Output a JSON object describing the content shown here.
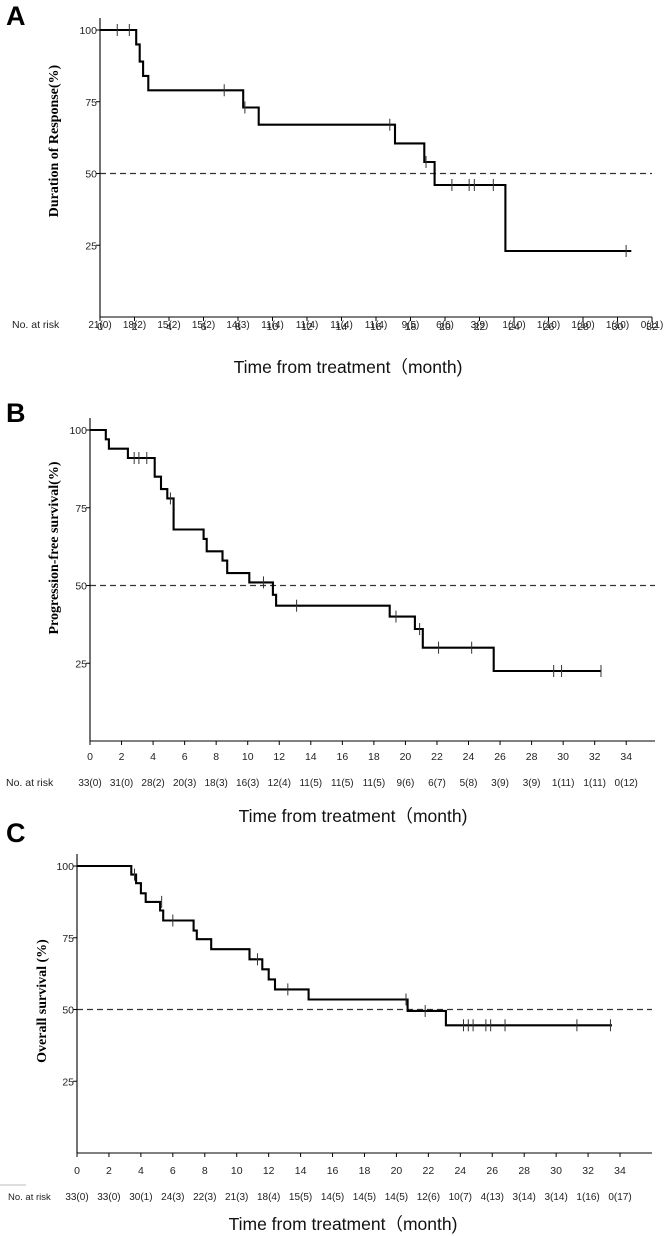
{
  "chart_data": [
    {
      "type": "line",
      "panel": "A",
      "ylabel": "Duration of Response(%)",
      "xlabel": "Time from treatment（month)",
      "xlim": [
        0,
        32
      ],
      "ylim": [
        0,
        100
      ],
      "x_ticks": [
        0,
        2,
        4,
        6,
        8,
        10,
        12,
        14,
        16,
        18,
        20,
        22,
        24,
        26,
        28,
        30,
        32
      ],
      "y_ticks": [
        25,
        50,
        75,
        100
      ],
      "reference_line": 50,
      "risk_label": "No. at risk",
      "risk_table": [
        {
          "t": 0,
          "value": "21(0)"
        },
        {
          "t": 2,
          "value": "18(2)"
        },
        {
          "t": 4,
          "value": "15(2)"
        },
        {
          "t": 6,
          "value": "15(2)"
        },
        {
          "t": 8,
          "value": "14(3)"
        },
        {
          "t": 10,
          "value": "11(4)"
        },
        {
          "t": 12,
          "value": "11(4)"
        },
        {
          "t": 14,
          "value": "11(4)"
        },
        {
          "t": 16,
          "value": "11(4)"
        },
        {
          "t": 18,
          "value": "9(5)"
        },
        {
          "t": 20,
          "value": "6(6)"
        },
        {
          "t": 22,
          "value": "3(9)"
        },
        {
          "t": 24,
          "value": "1(10)"
        },
        {
          "t": 26,
          "value": "1(10)"
        },
        {
          "t": 28,
          "value": "1(10)"
        },
        {
          "t": 30,
          "value": "1(10)"
        },
        {
          "t": 32,
          "value": "0(11)"
        }
      ],
      "curve": [
        [
          0,
          100
        ],
        [
          2.1,
          100
        ],
        [
          2.1,
          95
        ],
        [
          2.3,
          95
        ],
        [
          2.3,
          89
        ],
        [
          2.5,
          89
        ],
        [
          2.5,
          84
        ],
        [
          2.8,
          84
        ],
        [
          2.8,
          79
        ],
        [
          8.3,
          79
        ],
        [
          8.3,
          73
        ],
        [
          9.2,
          73
        ],
        [
          9.2,
          67
        ],
        [
          17.1,
          67
        ],
        [
          17.1,
          60.5
        ],
        [
          18.8,
          60.5
        ],
        [
          18.8,
          54
        ],
        [
          19.4,
          54
        ],
        [
          19.4,
          46
        ],
        [
          23.5,
          46
        ],
        [
          23.5,
          23
        ],
        [
          30.8,
          23
        ]
      ],
      "censored": [
        [
          1.0,
          100
        ],
        [
          1.7,
          100
        ],
        [
          7.2,
          79
        ],
        [
          8.4,
          73
        ],
        [
          16.8,
          67
        ],
        [
          18.9,
          54
        ],
        [
          20.4,
          46
        ],
        [
          21.4,
          46
        ],
        [
          21.7,
          46
        ],
        [
          22.8,
          46
        ],
        [
          30.5,
          23
        ]
      ]
    },
    {
      "type": "line",
      "panel": "B",
      "ylabel": "Progression-free survival(%)",
      "xlabel": "Time from treatment（month)",
      "xlim": [
        0,
        35
      ],
      "ylim": [
        0,
        100
      ],
      "x_ticks": [
        0,
        2,
        4,
        6,
        8,
        10,
        12,
        14,
        16,
        18,
        20,
        22,
        24,
        26,
        28,
        30,
        32,
        34
      ],
      "y_ticks": [
        25,
        50,
        75,
        100
      ],
      "reference_line": 50,
      "risk_label": "No. at risk",
      "risk_table": [
        {
          "t": 0,
          "value": "33(0)"
        },
        {
          "t": 2,
          "value": "31(0)"
        },
        {
          "t": 4,
          "value": "28(2)"
        },
        {
          "t": 6,
          "value": "20(3)"
        },
        {
          "t": 8,
          "value": "18(3)"
        },
        {
          "t": 10,
          "value": "16(3)"
        },
        {
          "t": 12,
          "value": "12(4)"
        },
        {
          "t": 14,
          "value": "11(5)"
        },
        {
          "t": 16,
          "value": "11(5)"
        },
        {
          "t": 18,
          "value": "11(5)"
        },
        {
          "t": 20,
          "value": "9(6)"
        },
        {
          "t": 22,
          "value": "6(7)"
        },
        {
          "t": 24,
          "value": "5(8)"
        },
        {
          "t": 26,
          "value": "3(9)"
        },
        {
          "t": 28,
          "value": "3(9)"
        },
        {
          "t": 30,
          "value": "1(11)"
        },
        {
          "t": 32,
          "value": "1(11)"
        },
        {
          "t": 34,
          "value": "0(12)"
        }
      ],
      "curve": [
        [
          0,
          100
        ],
        [
          1.0,
          100
        ],
        [
          1.0,
          97
        ],
        [
          1.2,
          97
        ],
        [
          1.2,
          94
        ],
        [
          2.4,
          94
        ],
        [
          2.4,
          91
        ],
        [
          4.1,
          91
        ],
        [
          4.1,
          85
        ],
        [
          4.5,
          85
        ],
        [
          4.5,
          81
        ],
        [
          4.9,
          81
        ],
        [
          4.9,
          78
        ],
        [
          5.3,
          78
        ],
        [
          5.3,
          68
        ],
        [
          7.2,
          68
        ],
        [
          7.2,
          65
        ],
        [
          7.4,
          65
        ],
        [
          7.4,
          61
        ],
        [
          8.4,
          61
        ],
        [
          8.4,
          58
        ],
        [
          8.7,
          58
        ],
        [
          8.7,
          54
        ],
        [
          10.1,
          54
        ],
        [
          10.1,
          51
        ],
        [
          11.6,
          51
        ],
        [
          11.6,
          47
        ],
        [
          11.8,
          47
        ],
        [
          11.8,
          43.5
        ],
        [
          19.0,
          43.5
        ],
        [
          19.0,
          40
        ],
        [
          20.6,
          40
        ],
        [
          20.6,
          36
        ],
        [
          21.1,
          36
        ],
        [
          21.1,
          30
        ],
        [
          25.6,
          30
        ],
        [
          25.6,
          22.5
        ],
        [
          32.4,
          22.5
        ]
      ],
      "censored": [
        [
          2.8,
          91
        ],
        [
          3.1,
          91
        ],
        [
          3.6,
          91
        ],
        [
          5.1,
          78
        ],
        [
          11.0,
          51
        ],
        [
          13.1,
          43.5
        ],
        [
          19.4,
          40
        ],
        [
          20.9,
          36
        ],
        [
          22.1,
          30
        ],
        [
          24.2,
          30
        ],
        [
          29.4,
          22.5
        ],
        [
          29.9,
          22.5
        ],
        [
          32.4,
          22.5
        ]
      ]
    },
    {
      "type": "line",
      "panel": "C",
      "ylabel": "Overall survival (%)",
      "xlabel": "Time from treatment（month)",
      "xlim": [
        0,
        35
      ],
      "ylim": [
        0,
        100
      ],
      "x_ticks": [
        0,
        2,
        4,
        6,
        8,
        10,
        12,
        14,
        16,
        18,
        20,
        22,
        24,
        26,
        28,
        30,
        32,
        34
      ],
      "y_ticks": [
        25,
        50,
        75,
        100
      ],
      "reference_line": 50,
      "risk_label": "No. at risk",
      "risk_table": [
        {
          "t": 0,
          "value": "33(0)"
        },
        {
          "t": 2,
          "value": "33(0)"
        },
        {
          "t": 4,
          "value": "30(1)"
        },
        {
          "t": 6,
          "value": "24(3)"
        },
        {
          "t": 8,
          "value": "22(3)"
        },
        {
          "t": 10,
          "value": "21(3)"
        },
        {
          "t": 12,
          "value": "18(4)"
        },
        {
          "t": 14,
          "value": "15(5)"
        },
        {
          "t": 16,
          "value": "14(5)"
        },
        {
          "t": 18,
          "value": "14(5)"
        },
        {
          "t": 20,
          "value": "14(5)"
        },
        {
          "t": 22,
          "value": "12(6)"
        },
        {
          "t": 24,
          "value": "10(7)"
        },
        {
          "t": 26,
          "value": "4(13)"
        },
        {
          "t": 28,
          "value": "3(14)"
        },
        {
          "t": 30,
          "value": "3(14)"
        },
        {
          "t": 32,
          "value": "1(16)"
        },
        {
          "t": 34,
          "value": "0(17)"
        }
      ],
      "curve": [
        [
          0,
          100
        ],
        [
          3.4,
          100
        ],
        [
          3.4,
          97
        ],
        [
          3.7,
          97
        ],
        [
          3.7,
          94
        ],
        [
          4.0,
          94
        ],
        [
          4.0,
          90.5
        ],
        [
          4.3,
          90.5
        ],
        [
          4.3,
          87.5
        ],
        [
          5.2,
          87.5
        ],
        [
          5.2,
          84.5
        ],
        [
          5.4,
          84.5
        ],
        [
          5.4,
          81
        ],
        [
          7.3,
          81
        ],
        [
          7.3,
          77.5
        ],
        [
          7.5,
          77.5
        ],
        [
          7.5,
          74.5
        ],
        [
          8.4,
          74.5
        ],
        [
          8.4,
          71
        ],
        [
          10.8,
          71
        ],
        [
          10.8,
          67.5
        ],
        [
          11.6,
          67.5
        ],
        [
          11.6,
          64
        ],
        [
          12.0,
          64
        ],
        [
          12.0,
          60.5
        ],
        [
          12.4,
          60.5
        ],
        [
          12.4,
          57
        ],
        [
          14.5,
          57
        ],
        [
          14.5,
          53.5
        ],
        [
          20.7,
          53.5
        ],
        [
          20.7,
          49.5
        ],
        [
          23.1,
          49.5
        ],
        [
          23.1,
          44.5
        ],
        [
          33.5,
          44.5
        ]
      ],
      "censored": [
        [
          3.6,
          97
        ],
        [
          5.3,
          87.5
        ],
        [
          6.0,
          81
        ],
        [
          11.3,
          67.5
        ],
        [
          13.2,
          57
        ],
        [
          20.6,
          53.5
        ],
        [
          21.8,
          49.5
        ],
        [
          24.2,
          44.5
        ],
        [
          24.5,
          44.5
        ],
        [
          24.8,
          44.5
        ],
        [
          25.6,
          44.5
        ],
        [
          25.9,
          44.5
        ],
        [
          26.8,
          44.5
        ],
        [
          31.3,
          44.5
        ],
        [
          33.4,
          44.5
        ]
      ]
    }
  ]
}
